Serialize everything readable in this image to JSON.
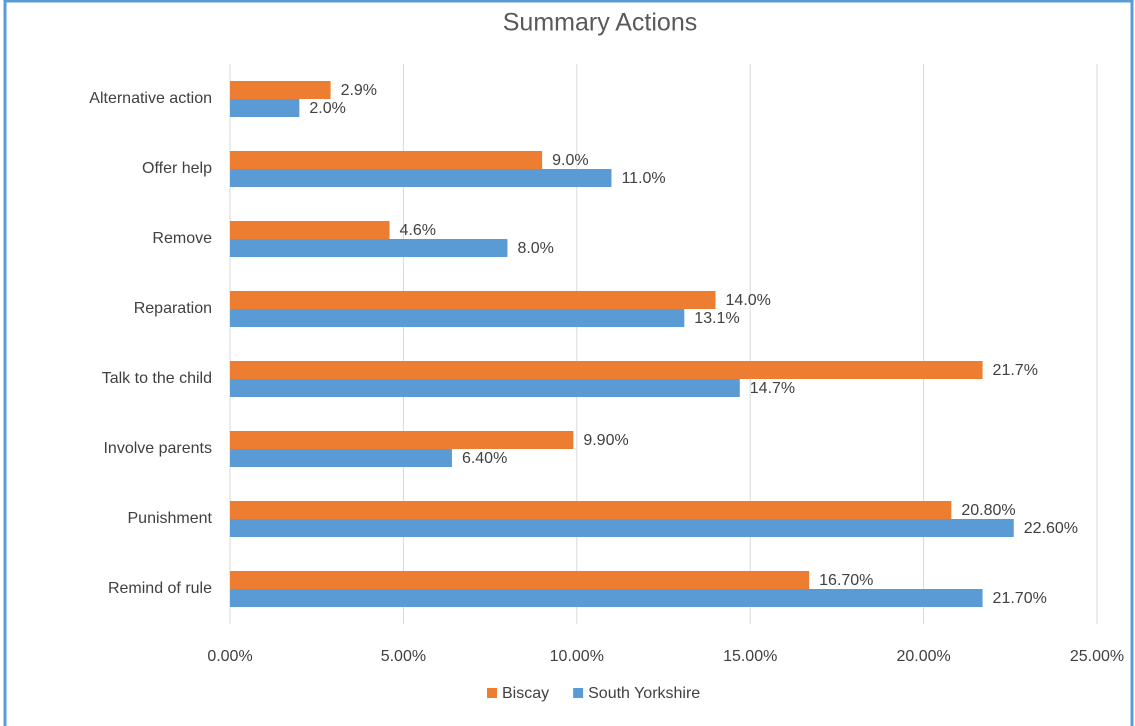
{
  "chart_data": {
    "type": "hbar",
    "title": "Summary Actions",
    "categories": [
      "Alternative action",
      "Offer help",
      "Remove",
      "Reparation",
      "Talk to the child",
      "Involve parents",
      "Punishment",
      "Remind of rule"
    ],
    "series": [
      {
        "name": "Biscay",
        "color": "#ed7d31",
        "values": [
          2.9,
          9.0,
          4.6,
          14.0,
          21.7,
          9.9,
          20.8,
          16.7
        ],
        "value_labels": [
          "2.9%",
          "9.0%",
          "4.6%",
          "14.0%",
          "21.7%",
          "9.90%",
          "20.80%",
          "16.70%"
        ]
      },
      {
        "name": "South Yorkshire",
        "color": "#5b9bd5",
        "values": [
          2.0,
          11.0,
          8.0,
          13.1,
          14.7,
          6.4,
          22.6,
          21.7
        ],
        "value_labels": [
          "2.0%",
          "11.0%",
          "8.0%",
          "13.1%",
          "14.7%",
          "6.40%",
          "22.60%",
          "21.70%"
        ]
      }
    ],
    "xlim": [
      0,
      25
    ],
    "xticks": [
      {
        "value": 0,
        "label": "0.00%"
      },
      {
        "value": 5,
        "label": "5.00%"
      },
      {
        "value": 10,
        "label": "10.00%"
      },
      {
        "value": 15,
        "label": "15.00%"
      },
      {
        "value": 20,
        "label": "20.00%"
      },
      {
        "value": 25,
        "label": "25.00%"
      }
    ],
    "grid": true,
    "legend": "bottom"
  }
}
